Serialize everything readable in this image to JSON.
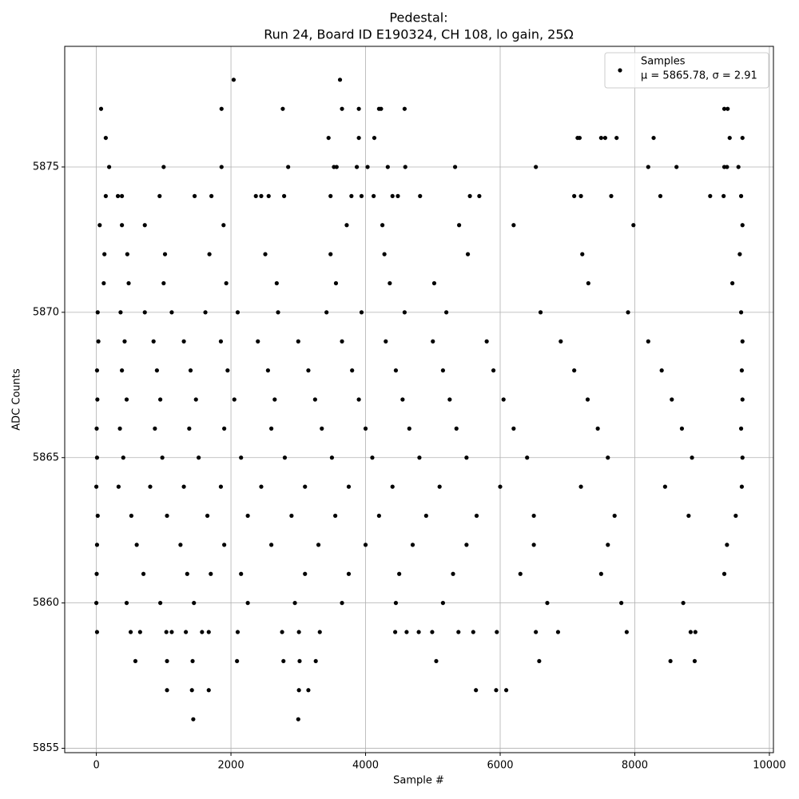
{
  "chart_data": {
    "type": "scatter",
    "title": "Pedestal:",
    "subtitle": "Run 24, Board ID E190324, CH 108, lo gain, 25Ω",
    "x_label": "Sample #",
    "y_label": "ADC Counts",
    "legend_note": "μ = 5865.78, σ = 2.91",
    "legend": "upper right",
    "grid": true,
    "xlim": [
      -470,
      10060
    ],
    "ylim": [
      5854.85,
      5879.15
    ],
    "xticks": [
      0,
      2000,
      4000,
      6000,
      8000,
      10000
    ],
    "yticks": [
      5855,
      5860,
      5865,
      5870,
      5875
    ],
    "series": [
      {
        "name": "Samples",
        "color": "#000000",
        "x": [
          2040,
          3620,
          70,
          1860,
          2770,
          3650,
          3900,
          4200,
          4230,
          4580,
          9330,
          9380,
          140,
          3450,
          3900,
          4130,
          7150,
          7180,
          7500,
          7560,
          7730,
          8280,
          9410,
          9600,
          190,
          1000,
          1860,
          2850,
          3530,
          3570,
          3870,
          4030,
          4330,
          4590,
          5330,
          6530,
          8200,
          8620,
          9330,
          9370,
          9540,
          140,
          320,
          380,
          940,
          1460,
          1710,
          2370,
          2450,
          2560,
          2790,
          3480,
          3790,
          3940,
          4120,
          4400,
          4480,
          4810,
          5550,
          5690,
          7100,
          7200,
          7650,
          8380,
          9120,
          9320,
          9580,
          50,
          380,
          720,
          1890,
          3720,
          4250,
          5390,
          6200,
          7980,
          9600,
          120,
          460,
          1020,
          1680,
          2510,
          3480,
          4280,
          5520,
          7220,
          9560,
          110,
          480,
          1000,
          1930,
          2680,
          3560,
          4360,
          5020,
          7310,
          9450,
          20,
          360,
          720,
          1120,
          1620,
          2100,
          2700,
          3420,
          3940,
          4580,
          5200,
          6600,
          7900,
          9580,
          30,
          420,
          850,
          1300,
          1850,
          2400,
          3000,
          3650,
          4300,
          5000,
          5800,
          6900,
          8200,
          9600,
          10,
          380,
          900,
          1400,
          1950,
          2550,
          3150,
          3800,
          4450,
          5150,
          5900,
          7100,
          8400,
          9590,
          15,
          450,
          950,
          1480,
          2050,
          2650,
          3250,
          3900,
          4550,
          5250,
          6050,
          7300,
          8550,
          9600,
          5,
          350,
          870,
          1380,
          1900,
          2600,
          3350,
          4000,
          4650,
          5350,
          6200,
          7450,
          8700,
          9580,
          10,
          400,
          980,
          1520,
          2150,
          2800,
          3500,
          4100,
          4800,
          5500,
          6400,
          7600,
          8850,
          9600,
          0,
          330,
          800,
          1300,
          1850,
          2450,
          3100,
          3750,
          4400,
          5100,
          6000,
          7200,
          8450,
          9590,
          20,
          520,
          1050,
          1650,
          2250,
          2900,
          3550,
          4200,
          4900,
          5650,
          6500,
          7700,
          8800,
          9500,
          10,
          600,
          1250,
          1900,
          2600,
          3300,
          4000,
          4700,
          5500,
          6500,
          7600,
          9370,
          5,
          700,
          1350,
          1700,
          2150,
          3100,
          3750,
          4500,
          5300,
          6300,
          7500,
          9330,
          0,
          450,
          950,
          1450,
          2250,
          2950,
          3650,
          4450,
          5150,
          6700,
          7800,
          8720,
          10,
          510,
          650,
          1040,
          1120,
          1330,
          1570,
          1670,
          2100,
          2760,
          3010,
          3320,
          4440,
          4610,
          4790,
          4990,
          5380,
          5600,
          5950,
          6530,
          6860,
          7880,
          8830,
          8900,
          580,
          1050,
          1430,
          2090,
          2780,
          3020,
          3260,
          5050,
          6580,
          8530,
          8890,
          1050,
          1420,
          1670,
          3010,
          3150,
          5640,
          5940,
          6090,
          1440,
          3000
        ],
        "values": [
          5878,
          5878,
          5877,
          5877,
          5877,
          5877,
          5877,
          5877,
          5877,
          5877,
          5877,
          5877,
          5876,
          5876,
          5876,
          5876,
          5876,
          5876,
          5876,
          5876,
          5876,
          5876,
          5876,
          5876,
          5875,
          5875,
          5875,
          5875,
          5875,
          5875,
          5875,
          5875,
          5875,
          5875,
          5875,
          5875,
          5875,
          5875,
          5875,
          5875,
          5875,
          5874,
          5874,
          5874,
          5874,
          5874,
          5874,
          5874,
          5874,
          5874,
          5874,
          5874,
          5874,
          5874,
          5874,
          5874,
          5874,
          5874,
          5874,
          5874,
          5874,
          5874,
          5874,
          5874,
          5874,
          5874,
          5874,
          5873,
          5873,
          5873,
          5873,
          5873,
          5873,
          5873,
          5873,
          5873,
          5873,
          5872,
          5872,
          5872,
          5872,
          5872,
          5872,
          5872,
          5872,
          5872,
          5872,
          5871,
          5871,
          5871,
          5871,
          5871,
          5871,
          5871,
          5871,
          5871,
          5871,
          5870,
          5870,
          5870,
          5870,
          5870,
          5870,
          5870,
          5870,
          5870,
          5870,
          5870,
          5870,
          5870,
          5870,
          5869,
          5869,
          5869,
          5869,
          5869,
          5869,
          5869,
          5869,
          5869,
          5869,
          5869,
          5869,
          5869,
          5869,
          5868,
          5868,
          5868,
          5868,
          5868,
          5868,
          5868,
          5868,
          5868,
          5868,
          5868,
          5868,
          5868,
          5868,
          5867,
          5867,
          5867,
          5867,
          5867,
          5867,
          5867,
          5867,
          5867,
          5867,
          5867,
          5867,
          5867,
          5867,
          5866,
          5866,
          5866,
          5866,
          5866,
          5866,
          5866,
          5866,
          5866,
          5866,
          5866,
          5866,
          5866,
          5866,
          5865,
          5865,
          5865,
          5865,
          5865,
          5865,
          5865,
          5865,
          5865,
          5865,
          5865,
          5865,
          5865,
          5865,
          5864,
          5864,
          5864,
          5864,
          5864,
          5864,
          5864,
          5864,
          5864,
          5864,
          5864,
          5864,
          5864,
          5864,
          5863,
          5863,
          5863,
          5863,
          5863,
          5863,
          5863,
          5863,
          5863,
          5863,
          5863,
          5863,
          5863,
          5863,
          5862,
          5862,
          5862,
          5862,
          5862,
          5862,
          5862,
          5862,
          5862,
          5862,
          5862,
          5862,
          5861,
          5861,
          5861,
          5861,
          5861,
          5861,
          5861,
          5861,
          5861,
          5861,
          5861,
          5861,
          5860,
          5860,
          5860,
          5860,
          5860,
          5860,
          5860,
          5860,
          5860,
          5860,
          5860,
          5860,
          5859,
          5859,
          5859,
          5859,
          5859,
          5859,
          5859,
          5859,
          5859,
          5859,
          5859,
          5859,
          5859,
          5859,
          5859,
          5859,
          5859,
          5859,
          5859,
          5859,
          5859,
          5859,
          5859,
          5859,
          5858,
          5858,
          5858,
          5858,
          5858,
          5858,
          5858,
          5858,
          5858,
          5858,
          5858,
          5857,
          5857,
          5857,
          5857,
          5857,
          5857,
          5857,
          5857,
          5856,
          5856
        ]
      }
    ]
  }
}
